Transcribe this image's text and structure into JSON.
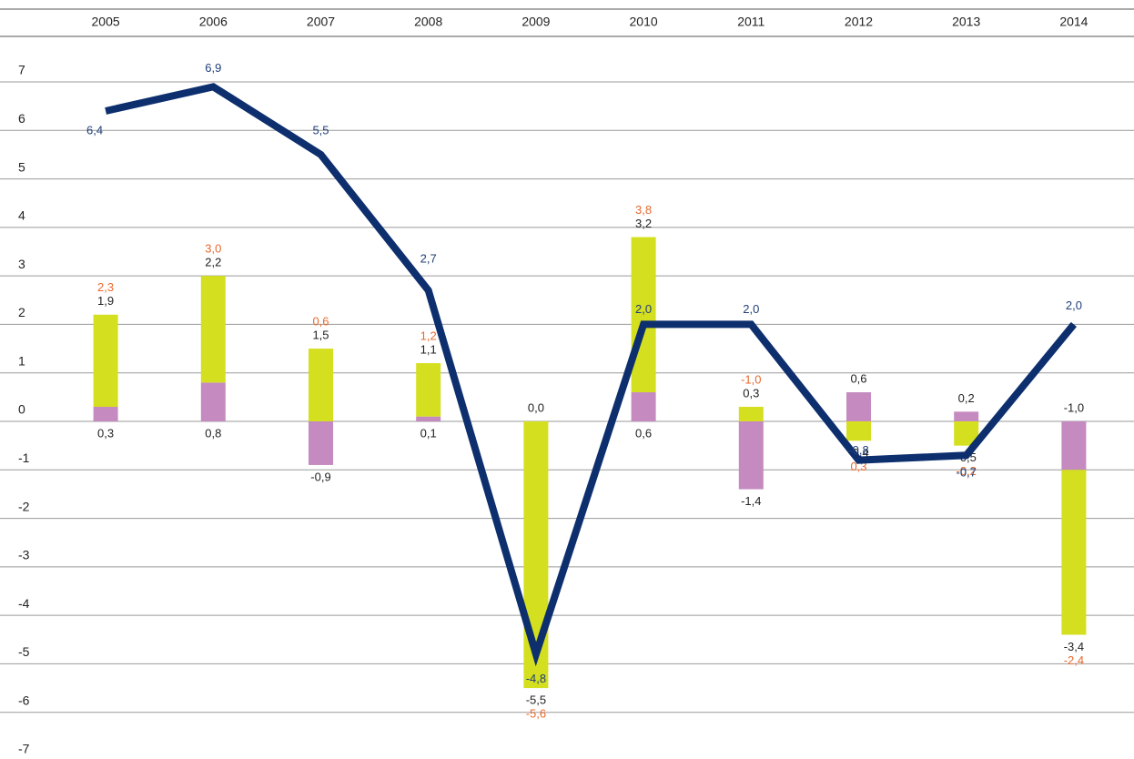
{
  "chart_data": {
    "type": "bar",
    "categories": [
      "2005",
      "2006",
      "2007",
      "2008",
      "2009",
      "2010",
      "2011",
      "2012",
      "2013",
      "2014"
    ],
    "ylim": [
      -7,
      7
    ],
    "yticks": [
      -7,
      -6,
      -5,
      -4,
      -3,
      -2,
      -1,
      0,
      1,
      2,
      3,
      4,
      5,
      6,
      7
    ],
    "grid": true,
    "series": [
      {
        "color": "#c58ac0",
        "values": [
          0.3,
          0.8,
          -0.9,
          0.1,
          0.0,
          0.6,
          -1.4,
          0.6,
          0.2,
          -1.0
        ],
        "value_labels": [
          "0,3",
          "0,8",
          "-0,9",
          "0,1",
          "0,0",
          "0,6",
          "-1,4",
          "0,6",
          "0,2",
          "-1,0"
        ]
      },
      {
        "color": "#d4df1f",
        "values": [
          1.9,
          2.2,
          1.5,
          1.1,
          -5.5,
          3.2,
          0.3,
          -0.4,
          -0.5,
          -3.4
        ],
        "value_labels": [
          "1,9",
          "2,2",
          "1,5",
          "1,1",
          "-5,5",
          "3,2",
          "0,3",
          "-0,4",
          "-0,5",
          "-3,4"
        ]
      },
      {
        "type": "text",
        "color": "#e8692e",
        "values": [
          2.3,
          3.0,
          0.6,
          1.2,
          -5.6,
          3.8,
          -1.0,
          0.3,
          -0.2,
          -2.4
        ],
        "value_labels": [
          "2,3",
          "3,0",
          "0,6",
          "1,2",
          "-5,6",
          "3,8",
          "-1,0",
          "0,3",
          "-0,2",
          "-2,4"
        ]
      },
      {
        "type": "line",
        "color": "#0d2f6e",
        "values": [
          6.4,
          6.9,
          5.5,
          2.7,
          -4.8,
          2.0,
          2.0,
          -0.8,
          -0.7,
          2.0
        ],
        "value_labels": [
          "6,4",
          "6,9",
          "5,5",
          "2,7",
          "-4,8",
          "2,0",
          "2,0",
          "-0,8",
          "-0,7",
          "2,0"
        ]
      }
    ]
  }
}
